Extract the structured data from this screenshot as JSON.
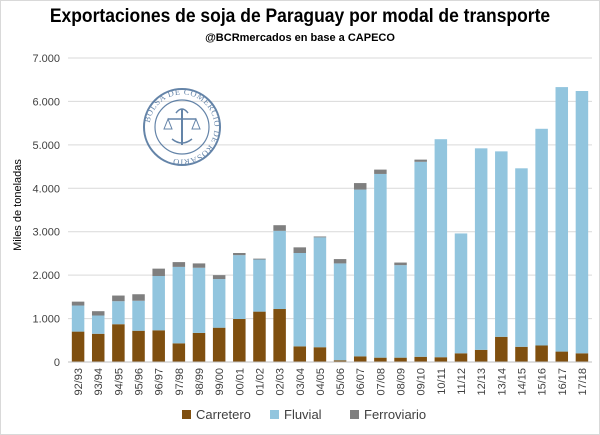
{
  "header": {
    "title": "Exportaciones de soja de Paraguay por modal de transporte",
    "subtitle": "@BCRmercados en base a CAPECO"
  },
  "watermark": {
    "text": "BOLSA DE COMERCIO DE ROSARIO"
  },
  "colors": {
    "carretero": "#7f4f0f",
    "fluvial": "#92c5de",
    "ferroviario": "#7f7f7f",
    "grid": "#d9d9d9"
  },
  "chart_data": {
    "type": "bar",
    "stacked": true,
    "title": "Exportaciones de soja de Paraguay por modal de transporte",
    "subtitle": "@BCRmercados en base a CAPECO",
    "xlabel": "",
    "ylabel": "Miles de toneladas",
    "ylim": [
      0,
      7000
    ],
    "yticks": [
      0,
      1000,
      2000,
      3000,
      4000,
      5000,
      6000,
      7000
    ],
    "ytick_labels": [
      "0",
      "1.000",
      "2.000",
      "3.000",
      "4.000",
      "5.000",
      "6.000",
      "7.000"
    ],
    "grid": true,
    "legend": "bottom",
    "categories": [
      "92/93",
      "93/94",
      "94/95",
      "95/96",
      "96/97",
      "97/98",
      "98/99",
      "99/00",
      "00/01",
      "01/02",
      "02/03",
      "03/04",
      "04/05",
      "05/06",
      "06/07",
      "07/08",
      "08/09",
      "09/10",
      "10/11",
      "11/12",
      "12/13",
      "13/14",
      "14/15",
      "15/16",
      "16/17",
      "17/18"
    ],
    "series": [
      {
        "name": "Carretero",
        "color": "#7f4f0f",
        "values": [
          700,
          650,
          870,
          720,
          730,
          430,
          670,
          790,
          990,
          1160,
          1220,
          360,
          340,
          40,
          130,
          100,
          100,
          120,
          110,
          200,
          280,
          580,
          350,
          380,
          240,
          200
        ]
      },
      {
        "name": "Fluvial",
        "color": "#92c5de",
        "values": [
          600,
          420,
          530,
          690,
          1250,
          1760,
          1500,
          1120,
          1470,
          1200,
          1800,
          2150,
          2530,
          2230,
          3840,
          4230,
          2130,
          4490,
          5020,
          2760,
          4640,
          4270,
          4110,
          4990,
          6090,
          6040
        ]
      },
      {
        "name": "Ferroviario",
        "color": "#7f7f7f",
        "values": [
          90,
          100,
          130,
          150,
          170,
          110,
          100,
          90,
          50,
          20,
          130,
          130,
          20,
          100,
          150,
          100,
          60,
          50,
          0,
          0,
          0,
          0,
          0,
          0,
          0,
          0
        ]
      }
    ]
  }
}
